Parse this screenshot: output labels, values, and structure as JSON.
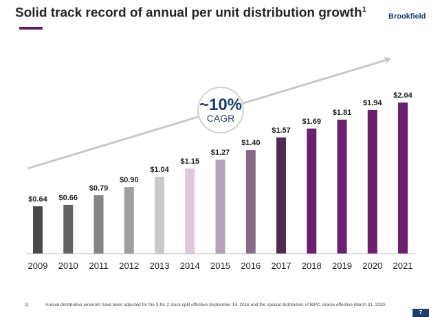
{
  "header": {
    "title": "Solid track record of annual per unit distribution growth",
    "title_footnote_ref": "1",
    "brand": "Brookfield",
    "accent_color": "#5e1f62",
    "brand_color": "#1c3f6e"
  },
  "chart_data": {
    "type": "bar",
    "title": "Solid track record of annual per unit distribution growth",
    "xlabel": "",
    "ylabel": "",
    "categories": [
      "2009",
      "2010",
      "2011",
      "2012",
      "2013",
      "2014",
      "2015",
      "2016",
      "2017",
      "2018",
      "2019",
      "2020",
      "2021"
    ],
    "values": [
      0.64,
      0.66,
      0.79,
      0.9,
      1.04,
      1.15,
      1.27,
      1.4,
      1.57,
      1.69,
      1.81,
      1.94,
      2.04
    ],
    "value_labels": [
      "$0.64",
      "$0.66",
      "$0.79",
      "$0.90",
      "$1.04",
      "$1.15",
      "$1.27",
      "$1.40",
      "$1.57",
      "$1.69",
      "$1.81",
      "$1.94",
      "$2.04"
    ],
    "bar_colors": [
      "#4a4a4a",
      "#636363",
      "#858585",
      "#a39e9e",
      "#cdc8c8",
      "#dcc9dc",
      "#b6a2b6",
      "#876a88",
      "#4e2b52",
      "#6b1f6e",
      "#6b1f6e",
      "#6b1f6e",
      "#6b1f6e"
    ],
    "ylim": [
      0,
      2.2
    ],
    "grid": false,
    "legend": "none",
    "annotation": {
      "value": "~10%",
      "label": "CAGR",
      "color": "#1c3f6e"
    },
    "trend_arrow_color": "#c8c8c8"
  },
  "footnote": {
    "number": "1)",
    "text": "Annual distribution amounts have been adjusted for the 3-for-2 stock split effective September 14, 2016 and the special distribution of BIPC shares effective March 31, 2020."
  },
  "page_number": "7"
}
